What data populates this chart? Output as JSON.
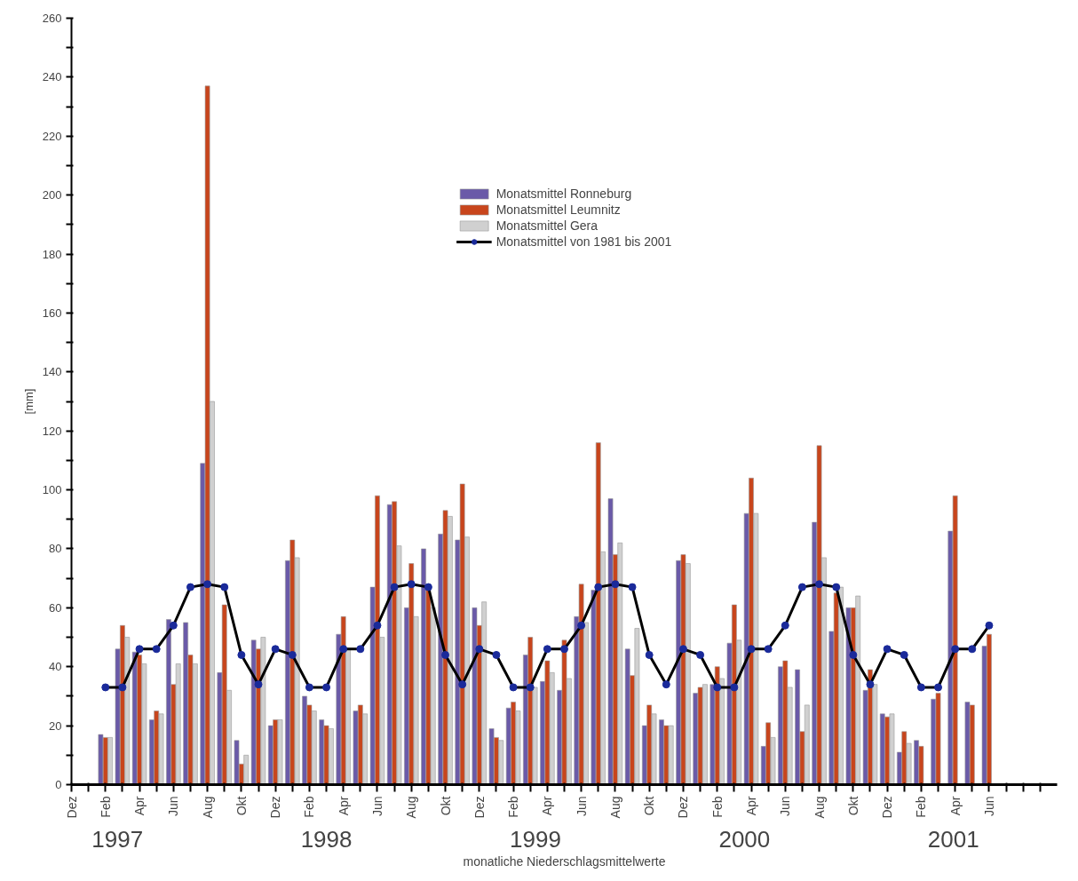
{
  "chart_data": {
    "type": "bar",
    "xlabel": "monatliche Niederschlagsmittelwerte",
    "ylabel": "[mm]",
    "annotations": [
      "1997",
      "1998",
      "1999",
      "2000",
      "2001"
    ],
    "x": [
      "1997-02",
      "1997-03",
      "1997-04",
      "1997-05",
      "1997-06",
      "1997-07",
      "1997-08",
      "1997-09",
      "1997-10",
      "1997-11",
      "1997-12",
      "1998-01",
      "1998-02",
      "1998-03",
      "1998-04",
      "1998-05",
      "1998-06",
      "1998-07",
      "1998-08",
      "1998-09",
      "1998-10",
      "1998-11",
      "1998-12",
      "1999-01",
      "1999-02",
      "1999-03",
      "1999-04",
      "1999-05",
      "1999-06",
      "1999-07",
      "1999-08",
      "1999-09",
      "1999-10",
      "1999-11",
      "1999-12",
      "2000-01",
      "2000-02",
      "2000-03",
      "2000-04",
      "2000-05",
      "2000-06",
      "2000-07",
      "2000-08",
      "2000-09",
      "2000-10",
      "2000-11",
      "2000-12",
      "2001-01",
      "2001-02",
      "2001-03",
      "2001-04",
      "2001-05",
      "2001-06"
    ],
    "series": [
      {
        "name": "Monatsmittel Ronneburg",
        "color": "#6a5aa8",
        "values": [
          17,
          46,
          45,
          22,
          56,
          55,
          109,
          38,
          15,
          49,
          20,
          76,
          30,
          22,
          51,
          25,
          67,
          95,
          60,
          80,
          85,
          83,
          60,
          19,
          26,
          44,
          35,
          32,
          57,
          66,
          97,
          46,
          20,
          22,
          76,
          31,
          34,
          48,
          92,
          13,
          40,
          39,
          89,
          52,
          60,
          32,
          24,
          11,
          15,
          29,
          86,
          28,
          47
        ]
      },
      {
        "name": "Monatsmittel Leumnitz",
        "color": "#c8451c",
        "values": [
          16,
          54,
          44,
          25,
          34,
          44,
          237,
          61,
          7,
          46,
          22,
          83,
          27,
          20,
          57,
          27,
          98,
          96,
          75,
          67,
          93,
          102,
          54,
          16,
          28,
          50,
          42,
          49,
          68,
          116,
          78,
          37,
          27,
          20,
          78,
          33,
          40,
          61,
          104,
          21,
          42,
          18,
          115,
          65,
          60,
          39,
          23,
          18,
          13,
          31,
          98,
          27,
          51
        ]
      },
      {
        "name": "Monatsmittel Gera",
        "color": "#d0d0d0",
        "values": [
          16,
          50,
          41,
          24,
          41,
          41,
          130,
          32,
          10,
          50,
          22,
          77,
          25,
          19,
          46,
          24,
          50,
          81,
          57,
          60,
          91,
          84,
          62,
          15,
          25,
          33,
          38,
          36,
          55,
          79,
          82,
          53,
          24,
          20,
          75,
          34,
          36,
          49,
          92,
          16,
          33,
          27,
          77,
          67,
          64,
          34,
          24,
          14,
          null,
          null,
          null,
          null,
          null
        ]
      },
      {
        "name": "Monatsmittel von 1981 bis 2001",
        "type": "line",
        "color": "#000000",
        "colors": [
          "#1a2a9a",
          "#1a2a9a",
          "#1a2a9a",
          "#1a2a9a",
          "#1a2a9a",
          "#1a2a9a",
          "#1a2a9a",
          "#1a2a9a",
          "#1a2a9a",
          "#1a2a9a",
          "#1a2a9a",
          "#1a2a9a",
          "#1a2a9a",
          "#1a2a9a",
          "#1a2a9a",
          "#1a2a9a",
          "#1a2a9a",
          "#1a2a9a",
          "#1a2a9a",
          "#1a2a9a",
          "#1a2a9a",
          "#1a2a9a",
          "#1a2a9a",
          "#1a2a9a",
          "#1a2a9a",
          "#1a2a9a",
          "#1a2a9a",
          "#1a2a9a",
          "#1a2a9a",
          "#1a2a9a",
          "#1a2a9a",
          "#1a2a9a",
          "#1a2a9a",
          "#1a2a9a",
          "#1a2a9a",
          "#1a2a9a",
          "#1a2a9a",
          "#1a2a9a",
          "#1a2a9a",
          "#1a2a9a",
          "#1a2a9a",
          "#1a2a9a",
          "#1a2a9a",
          "#1a2a9a",
          "#1a2a9a",
          "#1a2a9a",
          "#1a2a9a",
          "#1a2a9a",
          "#1a2a9a",
          "#1a2a9a",
          "#1a2a9a",
          "#1a2a9a",
          "#1a2a9a"
        ],
        "values": [
          33,
          33,
          46,
          46,
          54,
          67,
          68,
          67,
          44,
          34,
          46,
          44,
          33,
          33,
          46,
          46,
          54,
          67,
          68,
          67,
          44,
          34,
          46,
          44,
          33,
          33,
          46,
          46,
          54,
          67,
          68,
          67,
          44,
          34,
          46,
          44,
          33,
          33,
          46,
          46,
          54,
          67,
          68,
          67,
          44,
          34,
          46,
          44,
          33,
          33,
          46,
          46,
          54
        ]
      }
    ],
    "marker": "circle",
    "line_style": "solid",
    "grid": false,
    "legend": "top",
    "ylim": [
      0,
      260
    ],
    "yticks": [
      0,
      {
        "value": 10,
        "label": null
      },
      20,
      {
        "value": 30,
        "label": null
      },
      40,
      {
        "value": 50,
        "label": null
      },
      60,
      {
        "value": 70,
        "label": null
      },
      80,
      {
        "value": 90,
        "label": null
      },
      100,
      {
        "value": 110,
        "label": null
      },
      120,
      {
        "value": 130,
        "label": null
      },
      140,
      {
        "value": 150,
        "label": null
      },
      160,
      {
        "value": 170,
        "label": null
      },
      180,
      {
        "value": 190,
        "label": null
      },
      200,
      {
        "value": 210,
        "label": null
      },
      220,
      {
        "value": 230,
        "label": null
      },
      240,
      {
        "value": 250,
        "label": null
      },
      260
    ],
    "xlim": [
      "1996-12",
      "2001-10"
    ],
    "xticks": [
      {
        "value": "1996-12",
        "label": "Dez"
      },
      {
        "value": "1997-01",
        "label": null
      },
      {
        "value": "1997-02",
        "label": "Feb"
      },
      {
        "value": "1997-03",
        "label": null
      },
      {
        "value": "1997-04",
        "label": "Apr"
      },
      {
        "value": "1997-05",
        "label": null
      },
      {
        "value": "1997-06",
        "label": "Jun"
      },
      {
        "value": "1997-07",
        "label": null
      },
      {
        "value": "1997-08",
        "label": "Aug"
      },
      {
        "value": "1997-09",
        "label": null
      },
      {
        "value": "1997-10",
        "label": "Okt"
      },
      {
        "value": "1997-11",
        "label": null
      },
      {
        "value": "1997-12",
        "label": "Dez"
      },
      {
        "value": "1998-01",
        "label": null
      },
      {
        "value": "1998-02",
        "label": "Feb"
      },
      {
        "value": "1998-03",
        "label": null
      },
      {
        "value": "1998-04",
        "label": "Apr"
      },
      {
        "value": "1998-05",
        "label": null
      },
      {
        "value": "1998-06",
        "label": "Jun"
      },
      {
        "value": "1998-07",
        "label": null
      },
      {
        "value": "1998-08",
        "label": "Aug"
      },
      {
        "value": "1998-09",
        "label": null
      },
      {
        "value": "1998-10",
        "label": "Okt"
      },
      {
        "value": "1998-11",
        "label": null
      },
      {
        "value": "1998-12",
        "label": "Dez"
      },
      {
        "value": "1999-01",
        "label": null
      },
      {
        "value": "1999-02",
        "label": "Feb"
      },
      {
        "value": "1999-03",
        "label": null
      },
      {
        "value": "1999-04",
        "label": "Apr"
      },
      {
        "value": "1999-05",
        "label": null
      },
      {
        "value": "1999-06",
        "label": "Jun"
      },
      {
        "value": "1999-07",
        "label": null
      },
      {
        "value": "1999-08",
        "label": "Aug"
      },
      {
        "value": "1999-09",
        "label": null
      },
      {
        "value": "1999-10",
        "label": "Okt"
      },
      {
        "value": "1999-11",
        "label": null
      },
      {
        "value": "1999-12",
        "label": "Dez"
      },
      {
        "value": "2000-01",
        "label": null
      },
      {
        "value": "2000-02",
        "label": "Feb"
      },
      {
        "value": "2000-03",
        "label": null
      },
      {
        "value": "2000-04",
        "label": "Apr"
      },
      {
        "value": "2000-05",
        "label": null
      },
      {
        "value": "2000-06",
        "label": "Jun"
      },
      {
        "value": "2000-07",
        "label": null
      },
      {
        "value": "2000-08",
        "label": "Aug"
      },
      {
        "value": "2000-09",
        "label": null
      },
      {
        "value": "2000-10",
        "label": "Okt"
      },
      {
        "value": "2000-11",
        "label": null
      },
      {
        "value": "2000-12",
        "label": "Dez"
      },
      {
        "value": "2001-01",
        "label": null
      },
      {
        "value": "2001-02",
        "label": "Feb"
      },
      {
        "value": "2001-03",
        "label": null
      },
      {
        "value": "2001-04",
        "label": "Apr"
      },
      {
        "value": "2001-05",
        "label": null
      },
      {
        "value": "2001-06",
        "label": "Jun"
      },
      {
        "value": "2001-07",
        "label": null
      },
      {
        "value": "2001-08",
        "label": null
      },
      {
        "value": "2001-09",
        "label": null
      }
    ]
  }
}
